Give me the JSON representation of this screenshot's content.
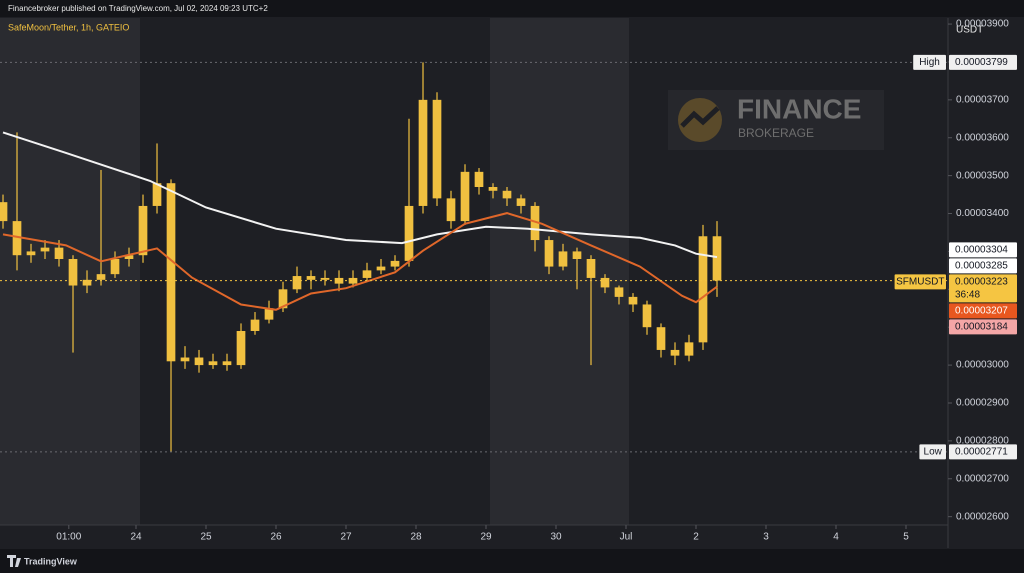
{
  "header": {
    "publisher": "Financebroker published on TradingView.com, Jul 02, 2024 09:23 UTC+2",
    "symbol": "SafeMoon/Tether, 1h, GATEIO"
  },
  "watermark": {
    "title": "FINANCE",
    "subtitle": "BROKERAGE"
  },
  "footer": "TradingView",
  "chart_data": {
    "type": "candlestick",
    "currency": "USDT",
    "color": "#f0c040",
    "x": [
      22.1,
      22.3,
      22.5,
      22.7,
      22.9,
      23.1,
      23.3,
      23.5,
      23.7,
      23.9,
      24.1,
      24.3,
      24.5,
      24.7,
      24.9,
      25.1,
      25.3,
      25.5,
      25.7,
      25.9,
      26.1,
      26.3,
      26.5,
      26.7,
      26.9,
      27.1,
      27.3,
      27.5,
      27.7,
      27.9,
      28.1,
      28.3,
      28.5,
      28.7,
      28.9,
      29.1,
      29.3,
      29.5,
      29.7,
      29.9,
      30.1,
      30.3,
      30.5,
      30.7,
      30.9,
      31.1,
      31.3,
      31.5,
      31.7,
      31.9,
      32.1,
      32.3
    ],
    "open": [
      3.43e-05,
      3.38e-05,
      3.29e-05,
      3.3e-05,
      3.31e-05,
      3.28e-05,
      3.21e-05,
      3.225e-05,
      3.24e-05,
      3.28e-05,
      3.29e-05,
      3.42e-05,
      3.48e-05,
      3.01e-05,
      3.02e-05,
      3e-05,
      3.01e-05,
      3e-05,
      3.09e-05,
      3.12e-05,
      3.15e-05,
      3.2e-05,
      3.235e-05,
      3.225e-05,
      3.23e-05,
      3.215e-05,
      3.23e-05,
      3.25e-05,
      3.26e-05,
      3.275e-05,
      3.42e-05,
      3.7e-05,
      3.44e-05,
      3.38e-05,
      3.51e-05,
      3.47e-05,
      3.46e-05,
      3.44e-05,
      3.42e-05,
      3.33e-05,
      3.26e-05,
      3.3e-05,
      3.28e-05,
      3.23e-05,
      3.205e-05,
      3.18e-05,
      3.16e-05,
      3.1e-05,
      3.04e-05,
      3.025e-05,
      3.06e-05,
      3.34e-05
    ],
    "high": [
      3.45e-05,
      3.614e-05,
      3.32e-05,
      3.33e-05,
      3.33e-05,
      3.29e-05,
      3.25e-05,
      3.515e-05,
      3.3e-05,
      3.31e-05,
      3.45e-05,
      3.585e-05,
      3.49e-05,
      3.05e-05,
      3.04e-05,
      3.03e-05,
      3.03e-05,
      3.11e-05,
      3.14e-05,
      3.17e-05,
      3.22e-05,
      3.26e-05,
      3.25e-05,
      3.25e-05,
      3.25e-05,
      3.25e-05,
      3.27e-05,
      3.28e-05,
      3.29e-05,
      3.65e-05,
      3.799e-05,
      3.72e-05,
      3.46e-05,
      3.53e-05,
      3.52e-05,
      3.48e-05,
      3.47e-05,
      3.45e-05,
      3.43e-05,
      3.34e-05,
      3.32e-05,
      3.31e-05,
      3.29e-05,
      3.24e-05,
      3.21e-05,
      3.19e-05,
      3.17e-05,
      3.11e-05,
      3.06e-05,
      3.08e-05,
      3.37e-05,
      3.38e-05
    ],
    "low": [
      3.36e-05,
      3.25e-05,
      3.27e-05,
      3.28e-05,
      3.26e-05,
      3.033e-05,
      3.19e-05,
      3.21e-05,
      3.23e-05,
      3.26e-05,
      3.27e-05,
      3.4e-05,
      2.771e-05,
      2.99e-05,
      2.98e-05,
      2.99e-05,
      2.985e-05,
      2.99e-05,
      3.08e-05,
      3.11e-05,
      3.14e-05,
      3.19e-05,
      3.2e-05,
      3.21e-05,
      3.195e-05,
      3.205e-05,
      3.22e-05,
      3.24e-05,
      3.25e-05,
      3.26e-05,
      3.4e-05,
      3.42e-05,
      3.36e-05,
      3.37e-05,
      3.45e-05,
      3.44e-05,
      3.42e-05,
      3.4e-05,
      3.3e-05,
      3.24e-05,
      3.25e-05,
      3.2e-05,
      3e-05,
      3.19e-05,
      3.16e-05,
      3.14e-05,
      3.08e-05,
      3.02e-05,
      3e-05,
      3.01e-05,
      3.04e-05,
      3.18e-05
    ],
    "close": [
      3.38e-05,
      3.29e-05,
      3.3e-05,
      3.31e-05,
      3.28e-05,
      3.21e-05,
      3.225e-05,
      3.24e-05,
      3.28e-05,
      3.29e-05,
      3.42e-05,
      3.48e-05,
      3.01e-05,
      3.02e-05,
      3e-05,
      3.01e-05,
      3e-05,
      3.09e-05,
      3.12e-05,
      3.15e-05,
      3.2e-05,
      3.235e-05,
      3.225e-05,
      3.23e-05,
      3.215e-05,
      3.23e-05,
      3.25e-05,
      3.26e-05,
      3.275e-05,
      3.42e-05,
      3.7e-05,
      3.44e-05,
      3.38e-05,
      3.51e-05,
      3.47e-05,
      3.46e-05,
      3.44e-05,
      3.42e-05,
      3.33e-05,
      3.26e-05,
      3.3e-05,
      3.28e-05,
      3.23e-05,
      3.205e-05,
      3.18e-05,
      3.16e-05,
      3.1e-05,
      3.04e-05,
      3.025e-05,
      3.06e-05,
      3.34e-05,
      3.223e-05
    ],
    "lines": [
      {
        "color": "#f2f2f2",
        "x": [
          22.1,
          23,
          24.2,
          25,
          26,
          27,
          27.8,
          28.3,
          29,
          29.6,
          30.5,
          31.2,
          31.7,
          32,
          32.3
        ],
        "values": [
          3.614e-05,
          3.56e-05,
          3.486e-05,
          3.416e-05,
          3.36e-05,
          3.33e-05,
          3.322e-05,
          3.345e-05,
          3.365e-05,
          3.36e-05,
          3.345e-05,
          3.336e-05,
          3.316e-05,
          3.294e-05,
          3.285e-05
        ]
      },
      {
        "color": "#e0672a",
        "x": [
          22.1,
          23,
          23.5,
          24.3,
          24.8,
          25.5,
          26,
          26.5,
          27,
          27.7,
          28.1,
          28.7,
          29.3,
          29.8,
          30.5,
          31.2,
          31.8,
          32,
          32.3
        ],
        "values": [
          3.345e-05,
          3.316e-05,
          3.274e-05,
          3.308e-05,
          3.231e-05,
          3.16e-05,
          3.146e-05,
          3.189e-05,
          3.203e-05,
          3.245e-05,
          3.302e-05,
          3.373e-05,
          3.401e-05,
          3.373e-05,
          3.316e-05,
          3.26e-05,
          3.183e-05,
          3.166e-05,
          3.207e-05
        ]
      }
    ],
    "xlim": [
      22.057,
      35.6
    ],
    "xticks": [
      {
        "value": 23.04,
        "label": "01:00"
      },
      24,
      25,
      26,
      27,
      28,
      29,
      30,
      {
        "value": 31,
        "label": "Jul"
      },
      {
        "value": 32,
        "label": "2"
      },
      {
        "value": 33,
        "label": "3"
      },
      {
        "value": 34,
        "label": "4"
      },
      {
        "value": 35,
        "label": "5"
      }
    ],
    "ylim": [
      2.578e-05,
      3.916e-05
    ],
    "yticks": [
      {
        "value": 2.6e-05,
        "label": "0.00002600"
      },
      {
        "value": 2.7e-05,
        "label": "0.00002700"
      },
      {
        "value": 2.8e-05,
        "label": "0.00002800"
      },
      {
        "value": 2.9e-05,
        "label": "0.00002900"
      },
      {
        "value": 3e-05,
        "label": "0.00003000"
      },
      {
        "value": 3.1e-05,
        "label": "0.00003100"
      },
      {
        "value": 3.2e-05,
        "label": "0.00003200"
      },
      {
        "value": 3.3e-05,
        "label": "0.00003300"
      },
      {
        "value": 3.4e-05,
        "label": "0.00003400"
      },
      {
        "value": 3.5e-05,
        "label": "0.00003500"
      },
      {
        "value": 3.6e-05,
        "label": "0.00003600"
      },
      {
        "value": 3.7e-05,
        "label": "0.00003700"
      },
      {
        "value": 3.8e-05,
        "label": "0.00003800"
      },
      {
        "value": 3.9e-05,
        "label": "0.00003900"
      }
    ],
    "price_labels": [
      {
        "tag": "High",
        "value": 3.799e-05,
        "label": "0.00003799",
        "color": "#f0f0f0",
        "text_color": "#131722"
      },
      {
        "value": 3.304e-05,
        "label": "0.00003304",
        "color": "#ffffff",
        "text_color": "#131722"
      },
      {
        "value": 3.285e-05,
        "label": "0.00003285",
        "color": "#ffffff",
        "text_color": "#131722"
      },
      {
        "tag": "SFMUSDT",
        "value": 3.223e-05,
        "label": "0.00003223",
        "countdown": "36:48",
        "color": "#f5c542",
        "text_color": "#131722"
      },
      {
        "value": 3.207e-05,
        "label": "0.00003207",
        "color": "#e8571f",
        "text_color": "#ffffff"
      },
      {
        "value": 3.184e-05,
        "label": "0.00003184",
        "color": "#f4a6a6",
        "text_color": "#131722"
      },
      {
        "tag": "Low",
        "value": 2.771e-05,
        "label": "0.00002771",
        "color": "#f0f0f0",
        "text_color": "#131722"
      }
    ]
  }
}
